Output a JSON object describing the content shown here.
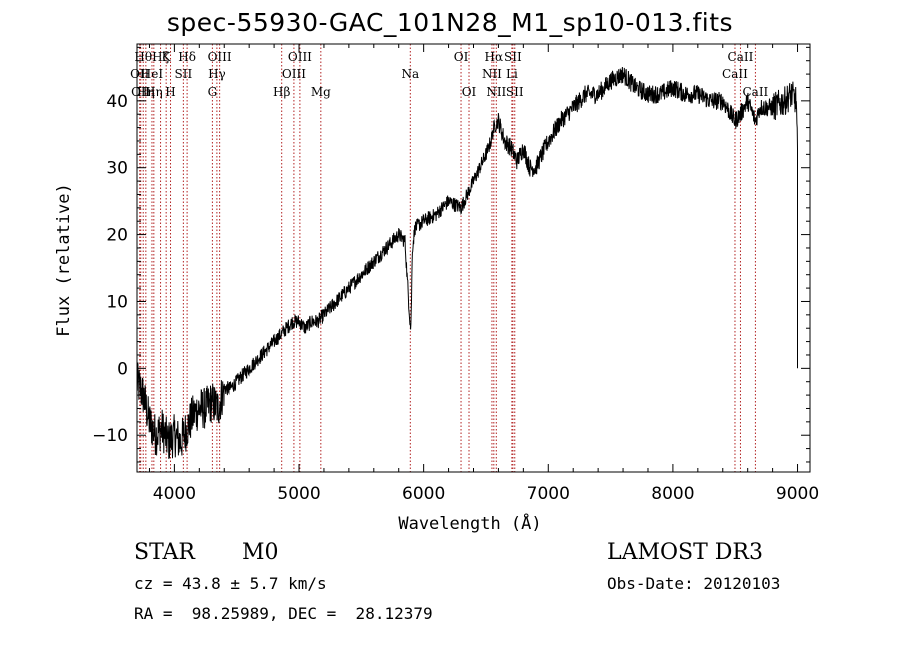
{
  "chart_data": {
    "type": "line",
    "title": "spec-55930-GAC_101N28_M1_sp10-013.fits",
    "xlabel": "Wavelength (Å)",
    "ylabel": "Flux (relative)",
    "xlim": [
      3700,
      9100
    ],
    "ylim": [
      -15.5,
      48.5
    ],
    "xticks": [
      4000,
      5000,
      6000,
      7000,
      8000,
      9000
    ],
    "yticks": [
      -10,
      0,
      10,
      20,
      30,
      40
    ],
    "series": [
      {
        "name": "spectrum",
        "x": [
          3700,
          3750,
          3800,
          3850,
          3900,
          3950,
          4000,
          4050,
          4100,
          4150,
          4200,
          4250,
          4300,
          4350,
          4400,
          4450,
          4500,
          4600,
          4700,
          4800,
          4850,
          4900,
          4950,
          5000,
          5050,
          5100,
          5150,
          5200,
          5300,
          5400,
          5500,
          5600,
          5700,
          5800,
          5850,
          5880,
          5895,
          5900,
          5910,
          5930,
          6000,
          6100,
          6200,
          6300,
          6400,
          6450,
          6500,
          6540,
          6563,
          6600,
          6650,
          6700,
          6750,
          6800,
          6850,
          6900,
          6950,
          7000,
          7100,
          7200,
          7300,
          7400,
          7500,
          7600,
          7700,
          7800,
          7900,
          8000,
          8100,
          8200,
          8300,
          8400,
          8498,
          8542,
          8600,
          8662,
          8700,
          8800,
          8900,
          8950,
          8990,
          9000
        ],
        "y": [
          -2,
          -4,
          -8,
          -10,
          -9,
          -11,
          -10,
          -11,
          -9,
          -7,
          -6,
          -6,
          -5,
          -6,
          -3,
          -3,
          -2,
          0,
          2,
          4,
          5,
          6,
          7,
          7,
          6,
          7,
          7,
          8,
          10,
          12,
          14,
          16,
          18,
          20,
          19,
          10,
          6,
          8,
          18,
          21,
          22,
          23,
          25,
          24,
          28,
          30,
          32,
          34,
          36,
          37,
          34,
          33,
          31,
          33,
          30,
          30,
          32,
          34,
          37,
          39,
          41,
          41,
          43,
          44,
          42,
          41,
          41,
          42,
          41,
          41,
          40,
          40,
          37,
          38,
          40,
          37,
          39,
          39,
          40,
          41,
          40,
          32
        ]
      }
    ],
    "lines": [
      {
        "wl": 3722,
        "label": "OII",
        "row": 2
      },
      {
        "wl": 3730,
        "label": "OII",
        "row": 3
      },
      {
        "wl": 3750,
        "label": "Hθ",
        "row": 1
      },
      {
        "wl": 3771,
        "label": "Hη",
        "row": 3
      },
      {
        "wl": 3820,
        "label": "HeI",
        "row": 2
      },
      {
        "wl": 3835,
        "label": "Hη",
        "row": 3
      },
      {
        "wl": 3889,
        "label": "Hζ",
        "row": 1
      },
      {
        "wl": 3934,
        "label": "K",
        "row": 1
      },
      {
        "wl": 3969,
        "label": "H",
        "row": 3
      },
      {
        "wl": 4072,
        "label": "SII",
        "row": 2
      },
      {
        "wl": 4102,
        "label": "Hδ",
        "row": 1
      },
      {
        "wl": 4305,
        "label": "G",
        "row": 3
      },
      {
        "wl": 4341,
        "label": "Hγ",
        "row": 2
      },
      {
        "wl": 4363,
        "label": "OIII",
        "row": 1
      },
      {
        "wl": 4861,
        "label": "Hβ",
        "row": 3
      },
      {
        "wl": 4959,
        "label": "OIII",
        "row": 2
      },
      {
        "wl": 5007,
        "label": "OIII",
        "row": 1
      },
      {
        "wl": 5175,
        "label": "Mg",
        "row": 3
      },
      {
        "wl": 5893,
        "label": "Na",
        "row": 2
      },
      {
        "wl": 6300,
        "label": "OI",
        "row": 1
      },
      {
        "wl": 6364,
        "label": "OI",
        "row": 3
      },
      {
        "wl": 6548,
        "label": "NII",
        "row": 2
      },
      {
        "wl": 6563,
        "label": "Hα",
        "row": 1
      },
      {
        "wl": 6583,
        "label": "NII",
        "row": 3
      },
      {
        "wl": 6708,
        "label": "Li",
        "row": 2
      },
      {
        "wl": 6716,
        "label": "SII",
        "row": 1
      },
      {
        "wl": 6731,
        "label": "SII",
        "row": 3
      },
      {
        "wl": 8498,
        "label": "CaII",
        "row": 2
      },
      {
        "wl": 8542,
        "label": "CaII",
        "row": 1
      },
      {
        "wl": 8662,
        "label": "CaII",
        "row": 3
      }
    ]
  },
  "info": {
    "class_label": "STAR",
    "subclass": "M0",
    "survey": "LAMOST DR3",
    "cz_text": "cz = 43.8 ± 5.7 km/s",
    "obs_date": "Obs-Date: 20120103",
    "radec": "RA =  98.25989, DEC =  28.12379"
  }
}
